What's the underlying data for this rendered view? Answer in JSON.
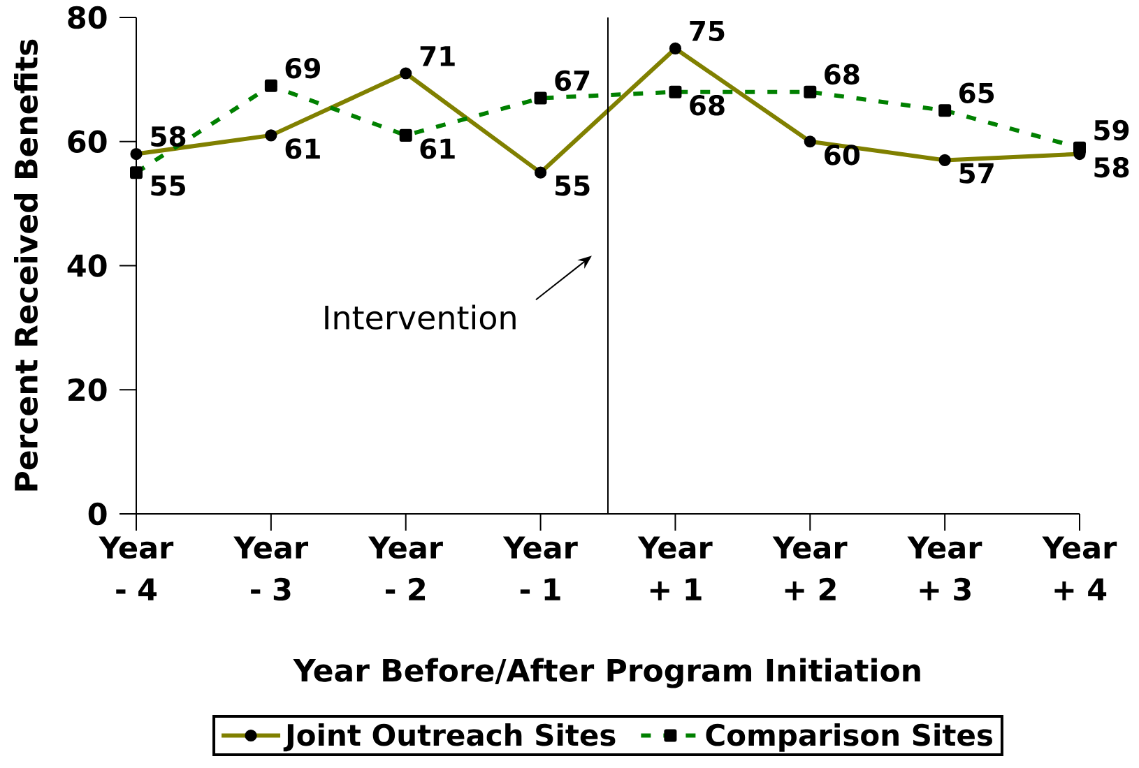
{
  "chart_data": {
    "type": "line",
    "xlabel": "Year Before/After Program Initiation",
    "ylabel": "Percent Received Benefits",
    "categories": [
      "Year - 4",
      "Year - 3",
      "Year - 2",
      "Year - 1",
      "Year + 1",
      "Year + 2",
      "Year + 3",
      "Year + 4"
    ],
    "series": [
      {
        "name": "Joint Outreach Sites",
        "color": "#808000",
        "values": [
          58,
          61,
          71,
          55,
          75,
          60,
          57,
          58
        ],
        "marker": "circle",
        "line_style": "solid"
      },
      {
        "name": "Comparison Sites",
        "color": "#008000",
        "values": [
          55,
          69,
          61,
          67,
          68,
          68,
          65,
          59
        ],
        "marker": "square",
        "line_style": "dashed"
      }
    ],
    "ylim": [
      0,
      80
    ],
    "yticks": [
      0,
      20,
      40,
      60,
      80
    ],
    "annotations": [
      "Intervention"
    ],
    "data_labels": true,
    "legend": "bottom"
  }
}
